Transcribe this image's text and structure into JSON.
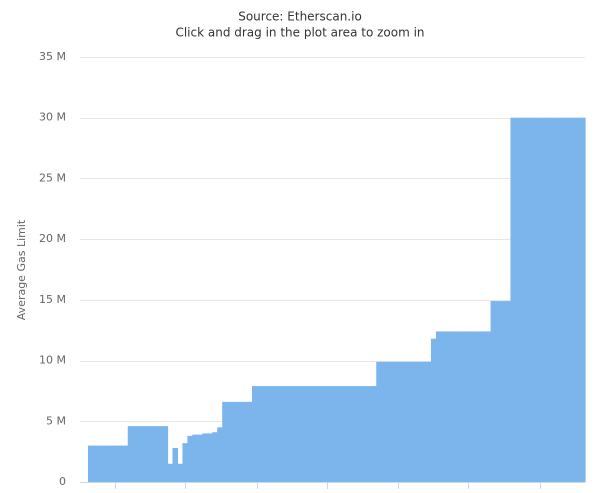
{
  "chart_data": {
    "type": "area",
    "subtitle": [
      "Source: Etherscan.io",
      "Click and drag in the plot area to zoom in"
    ],
    "y_label": "Average Gas Limit",
    "color": "#7cb5ec",
    "grid": true,
    "ylim": [
      0,
      35000000
    ],
    "yticks": [
      0,
      {
        "value": 5000000,
        "label": "5 M"
      },
      {
        "value": 10000000,
        "label": "10 M"
      },
      {
        "value": 15000000,
        "label": "15 M"
      },
      {
        "value": 20000000,
        "label": "20 M"
      },
      {
        "value": 25000000,
        "label": "25 M"
      },
      {
        "value": 30000000,
        "label": "30 M"
      },
      {
        "value": 35000000,
        "label": "35 M"
      }
    ],
    "values": [
      3000000,
      3000000,
      3000000,
      3000000,
      3000000,
      3000000,
      3000000,
      3000000,
      4600000,
      4600000,
      4600000,
      4600000,
      4600000,
      4600000,
      4600000,
      4600000,
      1500000,
      2800000,
      1500000,
      3200000,
      3800000,
      3900000,
      3900000,
      4000000,
      4000000,
      4100000,
      4500000,
      6600000,
      6600000,
      6600000,
      6600000,
      6600000,
      6600000,
      7900000,
      7900000,
      7900000,
      7900000,
      7900000,
      7900000,
      7900000,
      7900000,
      7900000,
      7900000,
      7900000,
      7900000,
      7900000,
      7900000,
      7900000,
      7900000,
      7900000,
      7900000,
      7900000,
      7900000,
      7900000,
      7900000,
      7900000,
      7900000,
      7900000,
      9900000,
      9900000,
      9900000,
      9900000,
      9900000,
      9900000,
      9900000,
      9900000,
      9900000,
      9900000,
      9900000,
      11800000,
      12400000,
      12400000,
      12400000,
      12400000,
      12400000,
      12400000,
      12400000,
      12400000,
      12400000,
      12400000,
      12400000,
      14900000,
      14900000,
      14900000,
      14900000,
      30000000,
      30000000,
      30000000,
      30000000,
      30000000,
      30000000,
      30000000,
      30000000,
      30000000,
      30000000,
      30000000,
      30000000,
      30000000,
      30000000,
      30000000
    ]
  }
}
